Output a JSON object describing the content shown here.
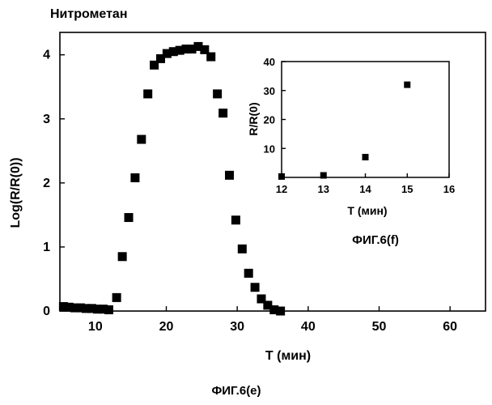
{
  "chart_data": [
    {
      "type": "scatter",
      "title": "Нитрометан",
      "xlabel": "T (мин)",
      "ylabel": "Log(R/R(0))",
      "xlim": [
        5,
        65
      ],
      "ylim": [
        0,
        4.35
      ],
      "x_ticks": [
        "10",
        "20",
        "30",
        "40",
        "50",
        "60"
      ],
      "y_ticks": [
        "0",
        "1",
        "2",
        "3",
        "4"
      ],
      "caption": "ФИГ.6(е)",
      "marker": "square",
      "color": "#000000",
      "grid": false,
      "series": [
        {
          "x": [
            5.5,
            6.3,
            7.1,
            7.9,
            8.7,
            9.5,
            10.3,
            11.1,
            11.9,
            13.0,
            13.8,
            14.7,
            15.6,
            16.5,
            17.4,
            18.3,
            19.2,
            20.1,
            21.0,
            21.9,
            22.8,
            23.6,
            24.5,
            25.4,
            26.3,
            27.2,
            28.0,
            28.9,
            29.8,
            30.7,
            31.6,
            32.5,
            33.4,
            34.3,
            35.2,
            36.1
          ],
          "y": [
            0.07,
            0.06,
            0.05,
            0.05,
            0.04,
            0.04,
            0.03,
            0.03,
            0.02,
            0.21,
            0.85,
            1.46,
            2.08,
            2.68,
            3.39,
            3.84,
            3.94,
            4.02,
            4.05,
            4.07,
            4.09,
            4.09,
            4.13,
            4.08,
            3.97,
            3.39,
            3.09,
            2.12,
            1.42,
            0.97,
            0.59,
            0.37,
            0.19,
            0.09,
            0.02,
            0.0
          ]
        }
      ]
    },
    {
      "type": "scatter",
      "xlabel": "T (мин)",
      "ylabel": "R/R(0)",
      "xlim": [
        12,
        16
      ],
      "ylim": [
        0,
        40
      ],
      "x_ticks": [
        "12",
        "13",
        "14",
        "15",
        "16"
      ],
      "y_ticks": [
        "10",
        "20",
        "30",
        "40"
      ],
      "caption": "ФИГ.6(f)",
      "marker": "square",
      "color": "#000000",
      "grid": false,
      "series": [
        {
          "x": [
            12,
            13,
            14,
            15
          ],
          "y": [
            0.3,
            0.7,
            7,
            32
          ]
        }
      ]
    }
  ]
}
